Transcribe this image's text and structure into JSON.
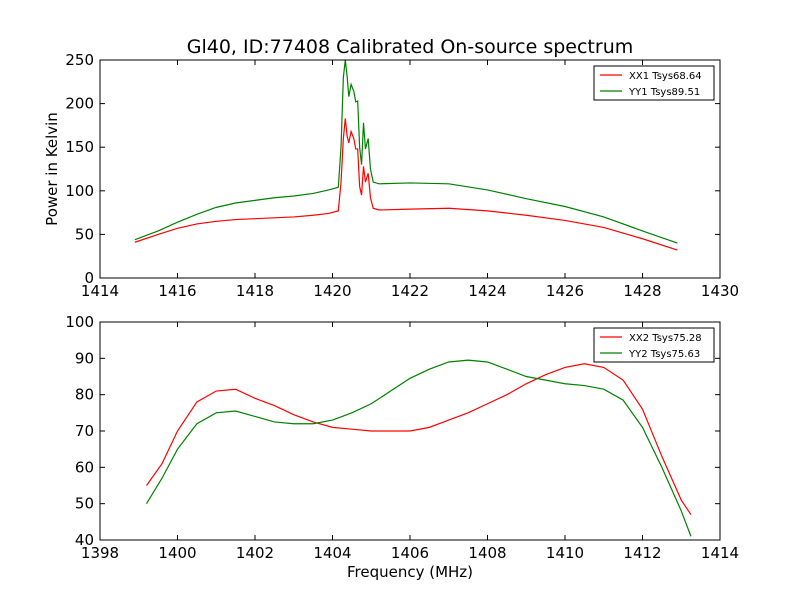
{
  "title": "Gl40, ID:77408 Calibrated On-source spectrum",
  "chart_data": [
    {
      "type": "line",
      "xlabel": "",
      "ylabel": "Power in Kelvin",
      "xlim": [
        1414,
        1430
      ],
      "ylim": [
        0,
        250
      ],
      "xticks": [
        "1414",
        "1416",
        "1418",
        "1420",
        "1422",
        "1424",
        "1426",
        "1428",
        "1430"
      ],
      "yticks": [
        "0",
        "50",
        "100",
        "150",
        "200",
        "250"
      ],
      "legend_position": "top-right",
      "series": [
        {
          "name": "XX1 Tsys68.64",
          "color": "#ff0000",
          "points": [
            [
              1414.9,
              41
            ],
            [
              1415.5,
              50
            ],
            [
              1416,
              57
            ],
            [
              1416.5,
              62
            ],
            [
              1417,
              65
            ],
            [
              1417.5,
              67
            ],
            [
              1418,
              68
            ],
            [
              1418.5,
              69
            ],
            [
              1419,
              70
            ],
            [
              1419.5,
              72
            ],
            [
              1419.9,
              74
            ],
            [
              1420.15,
              77
            ],
            [
              1420.22,
              110
            ],
            [
              1420.28,
              160
            ],
            [
              1420.33,
              183
            ],
            [
              1420.38,
              162
            ],
            [
              1420.42,
              155
            ],
            [
              1420.48,
              168
            ],
            [
              1420.55,
              160
            ],
            [
              1420.6,
              148
            ],
            [
              1420.65,
              148
            ],
            [
              1420.7,
              105
            ],
            [
              1420.75,
              95
            ],
            [
              1420.8,
              128
            ],
            [
              1420.85,
              110
            ],
            [
              1420.92,
              120
            ],
            [
              1420.98,
              92
            ],
            [
              1421.05,
              80
            ],
            [
              1421.2,
              78
            ],
            [
              1422,
              79
            ],
            [
              1423,
              80
            ],
            [
              1424,
              77
            ],
            [
              1425,
              72
            ],
            [
              1426,
              66
            ],
            [
              1427,
              58
            ],
            [
              1428,
              45
            ],
            [
              1428.9,
              32
            ]
          ]
        },
        {
          "name": "YY1 Tsys89.51",
          "color": "#008000",
          "points": [
            [
              1414.9,
              44
            ],
            [
              1415.5,
              54
            ],
            [
              1416,
              64
            ],
            [
              1416.5,
              73
            ],
            [
              1417,
              81
            ],
            [
              1417.5,
              86
            ],
            [
              1418,
              89
            ],
            [
              1418.5,
              92
            ],
            [
              1419,
              94
            ],
            [
              1419.5,
              97
            ],
            [
              1419.9,
              101
            ],
            [
              1420.15,
              104
            ],
            [
              1420.22,
              150
            ],
            [
              1420.28,
              230
            ],
            [
              1420.33,
              250
            ],
            [
              1420.38,
              230
            ],
            [
              1420.42,
              208
            ],
            [
              1420.48,
              222
            ],
            [
              1420.55,
              214
            ],
            [
              1420.6,
              202
            ],
            [
              1420.65,
              203
            ],
            [
              1420.7,
              150
            ],
            [
              1420.75,
              130
            ],
            [
              1420.8,
              178
            ],
            [
              1420.85,
              148
            ],
            [
              1420.92,
              160
            ],
            [
              1420.98,
              125
            ],
            [
              1421.05,
              110
            ],
            [
              1421.2,
              108
            ],
            [
              1422,
              109
            ],
            [
              1423,
              108
            ],
            [
              1424,
              101
            ],
            [
              1425,
              91
            ],
            [
              1426,
              82
            ],
            [
              1427,
              70
            ],
            [
              1428,
              54
            ],
            [
              1428.9,
              40
            ]
          ]
        }
      ]
    },
    {
      "type": "line",
      "xlabel": "Frequency (MHz)",
      "ylabel": "",
      "xlim": [
        1398,
        1414
      ],
      "ylim": [
        40,
        100
      ],
      "xticks": [
        "1398",
        "1400",
        "1402",
        "1404",
        "1406",
        "1408",
        "1410",
        "1412",
        "1414"
      ],
      "yticks": [
        "40",
        "50",
        "60",
        "70",
        "80",
        "90",
        "100"
      ],
      "legend_position": "top-right",
      "series": [
        {
          "name": "XX2 Tsys75.28",
          "color": "#ff0000",
          "points": [
            [
              1399.2,
              55
            ],
            [
              1399.6,
              61
            ],
            [
              1400,
              70
            ],
            [
              1400.5,
              78
            ],
            [
              1401,
              81
            ],
            [
              1401.5,
              81.5
            ],
            [
              1402,
              79
            ],
            [
              1402.5,
              77
            ],
            [
              1403,
              74.5
            ],
            [
              1403.5,
              72.5
            ],
            [
              1404,
              71
            ],
            [
              1404.5,
              70.5
            ],
            [
              1405,
              70
            ],
            [
              1405.5,
              70
            ],
            [
              1406,
              70
            ],
            [
              1406.5,
              71
            ],
            [
              1407,
              73
            ],
            [
              1407.5,
              75
            ],
            [
              1408,
              77.5
            ],
            [
              1408.5,
              80
            ],
            [
              1409,
              83
            ],
            [
              1409.5,
              85.5
            ],
            [
              1410,
              87.5
            ],
            [
              1410.5,
              88.5
            ],
            [
              1411,
              87.5
            ],
            [
              1411.5,
              84
            ],
            [
              1412,
              76
            ],
            [
              1412.5,
              63
            ],
            [
              1413,
              51
            ],
            [
              1413.25,
              47
            ]
          ]
        },
        {
          "name": "YY2 Tsys75.63",
          "color": "#008000",
          "points": [
            [
              1399.2,
              50
            ],
            [
              1399.6,
              57
            ],
            [
              1400,
              65
            ],
            [
              1400.5,
              72
            ],
            [
              1401,
              75
            ],
            [
              1401.5,
              75.5
            ],
            [
              1402,
              74
            ],
            [
              1402.5,
              72.5
            ],
            [
              1403,
              72
            ],
            [
              1403.5,
              72
            ],
            [
              1404,
              73
            ],
            [
              1404.5,
              75
            ],
            [
              1405,
              77.5
            ],
            [
              1405.5,
              81
            ],
            [
              1406,
              84.5
            ],
            [
              1406.5,
              87
            ],
            [
              1407,
              89
            ],
            [
              1407.5,
              89.5
            ],
            [
              1408,
              89
            ],
            [
              1408.5,
              87
            ],
            [
              1409,
              85
            ],
            [
              1409.5,
              84
            ],
            [
              1410,
              83
            ],
            [
              1410.5,
              82.5
            ],
            [
              1411,
              81.5
            ],
            [
              1411.5,
              78.5
            ],
            [
              1412,
              71
            ],
            [
              1412.5,
              60
            ],
            [
              1413,
              48
            ],
            [
              1413.25,
              41
            ]
          ]
        }
      ]
    }
  ]
}
